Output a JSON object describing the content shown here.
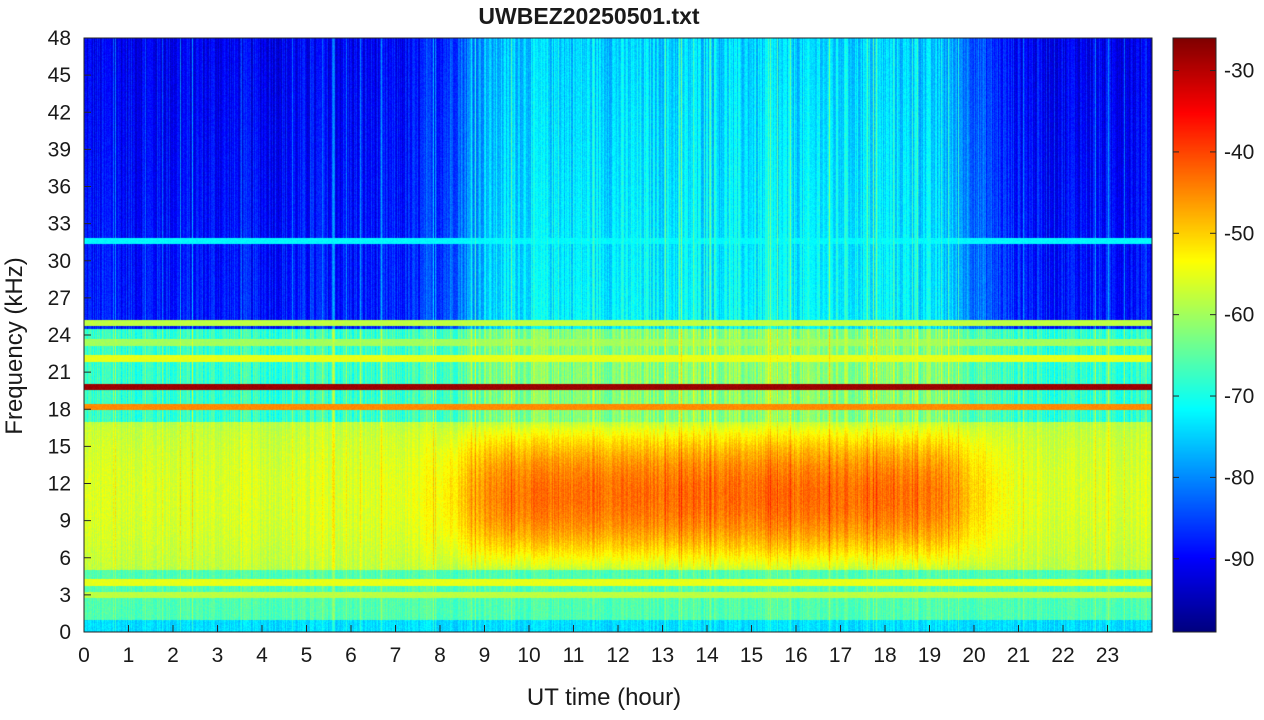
{
  "chart_data": {
    "type": "heatmap",
    "title": "UWBEZ20250501.txt",
    "xlabel": "UT time (hour)",
    "ylabel": "Frequency (kHz)",
    "xlim": [
      0,
      24
    ],
    "ylim": [
      0,
      48
    ],
    "x_ticks": [
      "0",
      "1",
      "2",
      "3",
      "4",
      "5",
      "6",
      "7",
      "8",
      "9",
      "10",
      "11",
      "12",
      "13",
      "14",
      "15",
      "16",
      "17",
      "18",
      "19",
      "20",
      "21",
      "22",
      "23"
    ],
    "y_ticks": [
      "0",
      "3",
      "6",
      "9",
      "12",
      "15",
      "18",
      "21",
      "24",
      "27",
      "30",
      "33",
      "36",
      "39",
      "42",
      "45",
      "48"
    ],
    "colorbar": {
      "colormap": "jet",
      "range": [
        -99,
        -26
      ],
      "ticks": [
        "-30",
        "-40",
        "-50",
        "-60",
        "-70",
        "-80",
        "-90"
      ]
    },
    "features": {
      "background_night_level": -88,
      "background_day_level": -72,
      "day_interval_hours": [
        8.5,
        20
      ],
      "narrowband_lines_khz": [
        {
          "freq": 19.8,
          "level": -28
        },
        {
          "freq": 18.2,
          "level": -45
        },
        {
          "freq": 22.1,
          "level": -55
        },
        {
          "freq": 23.4,
          "level": -60
        },
        {
          "freq": 25.0,
          "level": -58
        },
        {
          "freq": 4.0,
          "level": -55
        },
        {
          "freq": 3.0,
          "level": -58
        },
        {
          "freq": 31.6,
          "level": -72
        }
      ],
      "broadband_band_khz": [
        5,
        17
      ],
      "broadband_peak_level": -45
    }
  }
}
